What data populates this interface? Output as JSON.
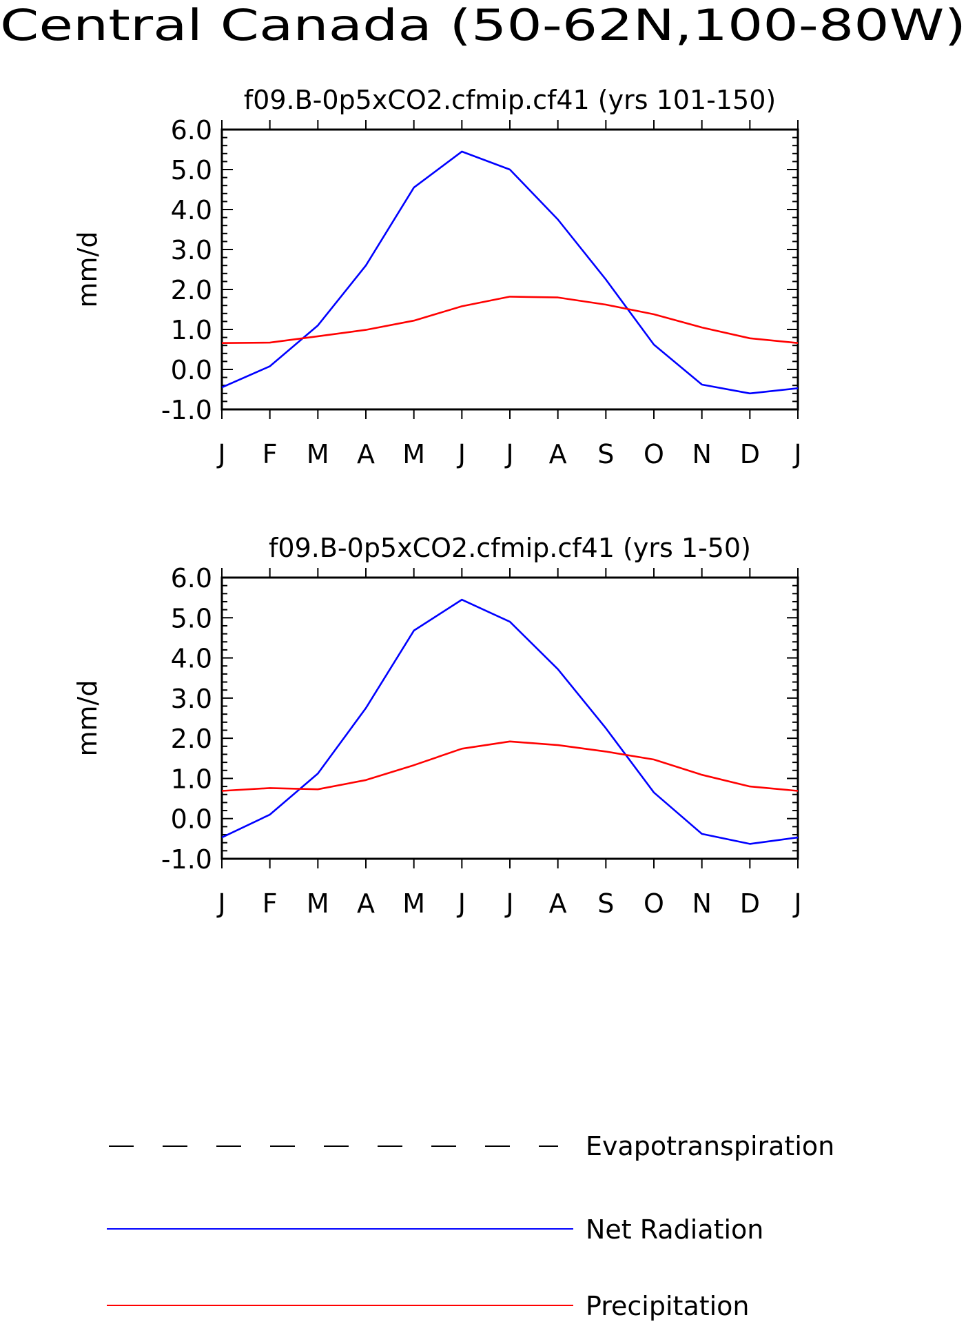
{
  "page_title": "Central Canada (50-62N,100-80W)",
  "colors": {
    "net_radiation": "#0000ff",
    "precipitation": "#ff0000",
    "evapotranspiration": "#000000"
  },
  "chart_data": [
    {
      "type": "line",
      "title": "f09.B-0p5xCO2.cfmip.cf41 (yrs 101-150)",
      "xlabel": "",
      "ylabel": "mm/d",
      "categories": [
        "J",
        "F",
        "M",
        "A",
        "M",
        "J",
        "J",
        "A",
        "S",
        "O",
        "N",
        "D",
        "J"
      ],
      "ylim": [
        -1.0,
        6.0
      ],
      "yticks": [
        "-1.0",
        "0.0",
        "1.0",
        "2.0",
        "3.0",
        "4.0",
        "5.0",
        "6.0"
      ],
      "grid": false,
      "series": [
        {
          "name": "Net Radiation",
          "color": "#0000ff",
          "values": [
            -0.45,
            0.08,
            1.1,
            2.6,
            4.55,
            5.45,
            5.0,
            3.75,
            2.25,
            0.62,
            -0.38,
            -0.6,
            -0.47
          ]
        },
        {
          "name": "Precipitation",
          "color": "#ff0000",
          "values": [
            0.66,
            0.67,
            0.83,
            0.99,
            1.22,
            1.58,
            1.82,
            1.8,
            1.62,
            1.38,
            1.05,
            0.78,
            0.66
          ]
        }
      ]
    },
    {
      "type": "line",
      "title": "f09.B-0p5xCO2.cfmip.cf41 (yrs 1-50)",
      "xlabel": "",
      "ylabel": "mm/d",
      "categories": [
        "J",
        "F",
        "M",
        "A",
        "M",
        "J",
        "J",
        "A",
        "S",
        "O",
        "N",
        "D",
        "J"
      ],
      "ylim": [
        -1.0,
        6.0
      ],
      "yticks": [
        "-1.0",
        "0.0",
        "1.0",
        "2.0",
        "3.0",
        "4.0",
        "5.0",
        "6.0"
      ],
      "grid": false,
      "series": [
        {
          "name": "Net Radiation",
          "color": "#0000ff",
          "values": [
            -0.47,
            0.1,
            1.12,
            2.75,
            4.68,
            5.45,
            4.9,
            3.72,
            2.25,
            0.65,
            -0.38,
            -0.63,
            -0.47
          ]
        },
        {
          "name": "Precipitation",
          "color": "#ff0000",
          "values": [
            0.69,
            0.76,
            0.73,
            0.96,
            1.33,
            1.74,
            1.92,
            1.83,
            1.67,
            1.47,
            1.09,
            0.8,
            0.69
          ]
        }
      ]
    }
  ],
  "legend": {
    "items": [
      {
        "label": "Evapotranspiration",
        "style": "dashed",
        "color": "#000000"
      },
      {
        "label": "Net Radiation",
        "style": "solid",
        "color": "#0000ff"
      },
      {
        "label": "Precipitation",
        "style": "solid",
        "color": "#ff0000"
      }
    ]
  }
}
